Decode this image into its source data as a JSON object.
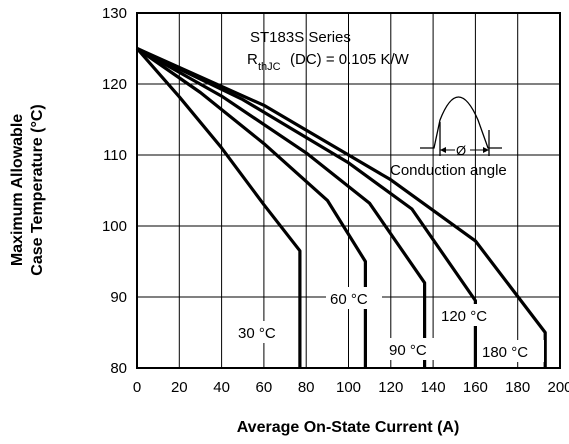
{
  "chart_data": {
    "type": "line",
    "xlabel": "Average On-State Current (A)",
    "ylabel_lines": [
      "Maximum Allowable",
      "Case Temperature (°C)"
    ],
    "xlim": [
      0,
      200
    ],
    "ylim": [
      80,
      130
    ],
    "x_ticks": [
      0,
      20,
      40,
      60,
      80,
      100,
      120,
      140,
      160,
      180,
      200
    ],
    "y_ticks": [
      80,
      90,
      100,
      110,
      120,
      130
    ],
    "grid": true,
    "annotation": {
      "series_title": "ST183S Series",
      "rth_symbol": "R",
      "rth_subscript": "thJC",
      "rth_value": "(DC) = 0.105 K/W",
      "conduction_label": "Conduction angle",
      "phi_symbol": "Ø"
    },
    "series": [
      {
        "name": "30 °C",
        "x": [
          0,
          20,
          40,
          60,
          77,
          77
        ],
        "y": [
          125,
          118.2,
          111,
          103,
          96.5,
          80
        ]
      },
      {
        "name": "60 °C",
        "x": [
          0,
          30,
          60,
          90,
          108,
          108
        ],
        "y": [
          125,
          118.8,
          111.6,
          103.6,
          95,
          80
        ]
      },
      {
        "name": "90 °C",
        "x": [
          0,
          40,
          80,
          110,
          136,
          136
        ],
        "y": [
          125,
          118.3,
          110.3,
          103.2,
          92,
          80
        ]
      },
      {
        "name": "120 °C",
        "x": [
          0,
          50,
          100,
          130,
          160,
          160
        ],
        "y": [
          125,
          117.8,
          108.9,
          102.4,
          89.5,
          80
        ]
      },
      {
        "name": "180 °C",
        "x": [
          0,
          60,
          120,
          160,
          193,
          193
        ],
        "y": [
          125,
          117,
          106.5,
          97.9,
          85,
          80
        ]
      }
    ]
  }
}
